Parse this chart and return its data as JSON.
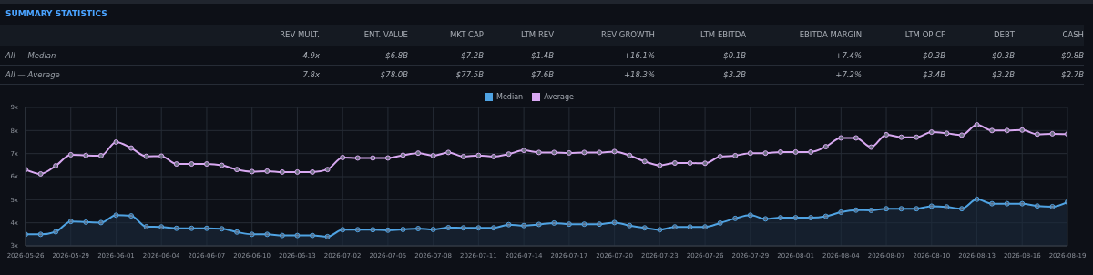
{
  "chart_data": [
    {
      "type": "other",
      "title": "SUMMARY STATISTICS",
      "categories": [
        "REV MULT.",
        "ENT. VALUE",
        "MKT CAP",
        "LTM REV",
        "REV GROWTH",
        "LTM EBITDA",
        "EBITDA MARGIN",
        "LTM OP CF",
        "DEBT",
        "CASH"
      ],
      "y_categories": [
        "All — Median",
        "All — Average"
      ],
      "cell_labels": [
        [
          "4.9x",
          "$6.8B",
          "$7.2B",
          "$1.4B",
          "+16.1%",
          "$0.1B",
          "+7.4%",
          "$0.3B",
          "$0.3B",
          "$0.8B"
        ],
        [
          "7.8x",
          "$78.0B",
          "$77.5B",
          "$7.6B",
          "+18.3%",
          "$3.2B",
          "+7.2%",
          "$3.4B",
          "$3.2B",
          "$2.7B"
        ]
      ]
    },
    {
      "type": "line",
      "categories": [
        "2026-05-26",
        null,
        null,
        "2026-05-29",
        null,
        null,
        "2026-06-01",
        null,
        null,
        "2026-06-04",
        null,
        null,
        "2026-06-07",
        null,
        null,
        "2026-06-10",
        null,
        null,
        "2026-06-13",
        null,
        null,
        "2026-07-02",
        null,
        null,
        "2026-07-05",
        null,
        null,
        "2026-07-08",
        null,
        null,
        "2026-07-11",
        null,
        null,
        "2026-07-14",
        null,
        null,
        "2026-07-17",
        null,
        null,
        "2026-07-20",
        null,
        null,
        "2026-07-23",
        null,
        null,
        "2026-07-26",
        null,
        null,
        "2026-07-29",
        null,
        null,
        "2026-08-01",
        null,
        null,
        "2026-08-04",
        null,
        null,
        "2026-08-07",
        null,
        null,
        "2026-08-10",
        null,
        null,
        "2026-08-13",
        null,
        null,
        "2026-08-16",
        null,
        null,
        "2026-08-19"
      ],
      "series": [
        {
          "name": "Median",
          "type": "area",
          "color": "#4fa3e3",
          "values": [
            3.5,
            3.5,
            3.61,
            4.06,
            4.03,
            4.01,
            4.33,
            4.3,
            3.83,
            3.82,
            3.76,
            3.76,
            3.76,
            3.74,
            3.6,
            3.5,
            3.5,
            3.45,
            3.45,
            3.45,
            3.4,
            3.7,
            3.7,
            3.7,
            3.68,
            3.71,
            3.75,
            3.71,
            3.79,
            3.78,
            3.78,
            3.78,
            3.92,
            3.88,
            3.93,
            3.99,
            3.94,
            3.94,
            3.94,
            4.01,
            3.88,
            3.78,
            3.7,
            3.82,
            3.82,
            3.82,
            3.99,
            4.19,
            4.33,
            4.17,
            4.22,
            4.22,
            4.22,
            4.28,
            4.46,
            4.55,
            4.54,
            4.61,
            4.61,
            4.61,
            4.72,
            4.69,
            4.61,
            5.02,
            4.83,
            4.83,
            4.83,
            4.73,
            4.7,
            4.9
          ]
        },
        {
          "name": "Average",
          "type": "line",
          "color": "#d9a9f2",
          "values": [
            6.31,
            6.12,
            6.47,
            6.95,
            6.92,
            6.91,
            7.5,
            7.24,
            6.88,
            6.89,
            6.55,
            6.55,
            6.55,
            6.49,
            6.31,
            6.22,
            6.24,
            6.2,
            6.2,
            6.2,
            6.31,
            6.83,
            6.81,
            6.81,
            6.81,
            6.93,
            7.02,
            6.91,
            7.05,
            6.87,
            6.92,
            6.87,
            6.98,
            7.14,
            7.05,
            7.05,
            7.03,
            7.05,
            7.05,
            7.09,
            6.92,
            6.66,
            6.49,
            6.59,
            6.59,
            6.58,
            6.87,
            6.91,
            7.02,
            7.02,
            7.07,
            7.07,
            7.07,
            7.3,
            7.68,
            7.68,
            7.28,
            7.82,
            7.71,
            7.71,
            7.93,
            7.88,
            7.8,
            8.25,
            8.0,
            8.0,
            8.02,
            7.84,
            7.86,
            7.85
          ]
        }
      ],
      "ylim": [
        3,
        9
      ],
      "yticks": [
        {
          "value": 3,
          "label": "3x"
        },
        {
          "value": 4,
          "label": "4x"
        },
        {
          "value": 5,
          "label": "5x"
        },
        {
          "value": 6,
          "label": "6x"
        },
        {
          "value": 7,
          "label": "7x"
        },
        {
          "value": 8,
          "label": "8x"
        },
        {
          "value": 9,
          "label": "9x"
        }
      ],
      "grid": true,
      "legend": "top",
      "marker": "circle"
    }
  ]
}
